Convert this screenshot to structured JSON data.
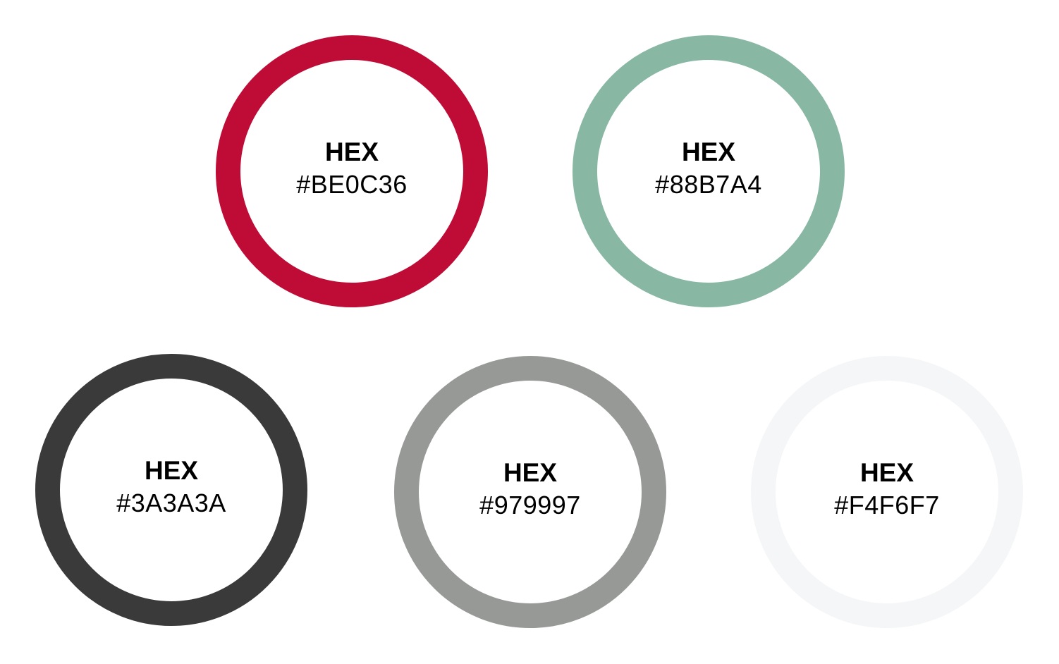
{
  "swatches": [
    {
      "label": "HEX",
      "hex": "#BE0C36",
      "color": "#BE0C36"
    },
    {
      "label": "HEX",
      "hex": "#88B7A4",
      "color": "#88B7A4"
    },
    {
      "label": "HEX",
      "hex": "#3A3A3A",
      "color": "#3A3A3A"
    },
    {
      "label": "HEX",
      "hex": "#979997",
      "color": "#979997"
    },
    {
      "label": "HEX",
      "hex": "#F4F6F7",
      "color": "#F4F6F7"
    }
  ]
}
